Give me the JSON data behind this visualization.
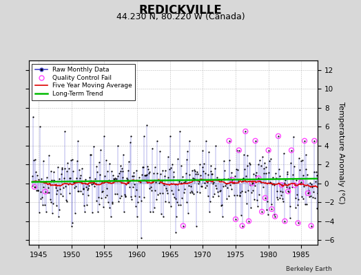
{
  "title": "REDICKVILLE",
  "subtitle": "44.230 N, 80.220 W (Canada)",
  "ylabel": "Temperature Anomaly (°C)",
  "attribution": "Berkeley Earth",
  "xlim": [
    1943.5,
    1987.5
  ],
  "ylim": [
    -6.5,
    13.0
  ],
  "yticks": [
    -6,
    -4,
    -2,
    0,
    2,
    4,
    6,
    8,
    10,
    12
  ],
  "xticks": [
    1945,
    1950,
    1955,
    1960,
    1965,
    1970,
    1975,
    1980,
    1985
  ],
  "bg_color": "#d8d8d8",
  "plot_bg_color": "#ffffff",
  "raw_line_color": "#4444cc",
  "raw_dot_color": "#000000",
  "qc_fail_color": "#ff44ff",
  "moving_avg_color": "#dd0000",
  "trend_color": "#00bb00",
  "title_fontsize": 12,
  "subtitle_fontsize": 9,
  "seed": 42
}
